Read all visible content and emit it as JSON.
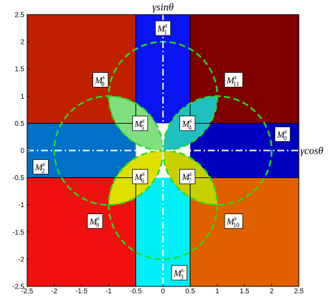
{
  "chart_data": {
    "type": "region-map",
    "title": "",
    "xlabel": "γcosθ",
    "ylabel": "γsinθ",
    "xlim": [
      -2.5,
      2.5
    ],
    "ylim": [
      -2.5,
      2.5
    ],
    "xticks": [
      "-2.5",
      "-2",
      "-1.5",
      "-1",
      "-0.5",
      "0",
      "0.5",
      "1",
      "1.5",
      "2",
      "2.5"
    ],
    "yticks": [
      "2.5",
      "2",
      "1.5",
      "1",
      "0.5",
      "0",
      "-0.5",
      "-1",
      "-1.5",
      "-2",
      "-2.5"
    ],
    "band_halfwidth": 0.5,
    "circles": [
      {
        "cx": 0,
        "cy": 1,
        "r": 1
      },
      {
        "cx": 1,
        "cy": 0,
        "r": 1
      },
      {
        "cx": 0,
        "cy": -1,
        "r": 1
      },
      {
        "cx": -1,
        "cy": 0,
        "r": 1
      }
    ],
    "rect_regions": [
      {
        "label": "M_1^s",
        "x": [
          -0.5,
          0.5
        ],
        "y": [
          0.5,
          2.5
        ],
        "color": "#0a14f0"
      },
      {
        "label": "M_3^s",
        "x": [
          -0.5,
          0.5
        ],
        "y": [
          -2.5,
          -0.5
        ],
        "color": "#00f0f8"
      },
      {
        "label": "M_0^s",
        "x": [
          0.5,
          2.5
        ],
        "y": [
          -0.5,
          0.5
        ],
        "color": "#0000c0"
      },
      {
        "label": "M_2^s",
        "x": [
          -2.5,
          -0.5
        ],
        "y": [
          -0.5,
          0.5
        ],
        "color": "#0070c8"
      },
      {
        "label": "M_8^s",
        "x": [
          -2.5,
          -0.5
        ],
        "y": [
          0.5,
          2.5
        ],
        "color": "#c02000"
      },
      {
        "label": "M_11^s",
        "x": [
          0.5,
          2.5
        ],
        "y": [
          0.5,
          2.5
        ],
        "color": "#800000"
      },
      {
        "label": "M_9^s",
        "x": [
          -2.5,
          -0.5
        ],
        "y": [
          -2.5,
          -0.5
        ],
        "color": "#f01010"
      },
      {
        "label": "M_10^s",
        "x": [
          0.5,
          2.5
        ],
        "y": [
          -2.5,
          -0.5
        ],
        "color": "#e06000"
      }
    ],
    "petal_regions": [
      {
        "label": "M_5^s",
        "quadrant": "top-left",
        "color": "#80e080"
      },
      {
        "label": "M_4^s",
        "quadrant": "top-right",
        "color": "#20c0c0"
      },
      {
        "label": "M_6^s",
        "quadrant": "bottom-left",
        "color": "#e0e000"
      },
      {
        "label": "M_7^s",
        "quadrant": "bottom-right",
        "color": "#c8d000"
      }
    ],
    "labels": [
      {
        "main": "M",
        "sup": "s",
        "sub": "1",
        "x": 0.0,
        "y": 2.25
      },
      {
        "main": "M",
        "sup": "s",
        "sub": "3",
        "x": 0.3,
        "y": -2.25
      },
      {
        "main": "M",
        "sup": "s",
        "sub": "0",
        "x": 2.2,
        "y": 0.3
      },
      {
        "main": "M",
        "sup": "s",
        "sub": "2",
        "x": -2.25,
        "y": -0.3
      },
      {
        "main": "M",
        "sup": "s",
        "sub": "8",
        "x": -1.15,
        "y": 1.3
      },
      {
        "main": "M",
        "sup": "s",
        "sub": "11",
        "x": 1.3,
        "y": 1.3
      },
      {
        "main": "M",
        "sup": "s",
        "sub": "9",
        "x": -1.25,
        "y": -1.3
      },
      {
        "main": "M",
        "sup": "s",
        "sub": "10",
        "x": 1.3,
        "y": -1.3
      },
      {
        "main": "M",
        "sup": "s",
        "sub": "5",
        "x": -0.42,
        "y": 0.5
      },
      {
        "main": "M",
        "sup": "s",
        "sub": "4",
        "x": 0.45,
        "y": 0.5
      },
      {
        "main": "M",
        "sup": "s",
        "sub": "6",
        "x": -0.42,
        "y": -0.48
      },
      {
        "main": "M",
        "sup": "s",
        "sub": "7",
        "x": 0.45,
        "y": -0.48
      }
    ],
    "grid": false,
    "legend": "none"
  },
  "colors": {
    "circle_stroke": "#22dd22",
    "axis_dashdot": "#ffffff",
    "divider": "#000000"
  }
}
